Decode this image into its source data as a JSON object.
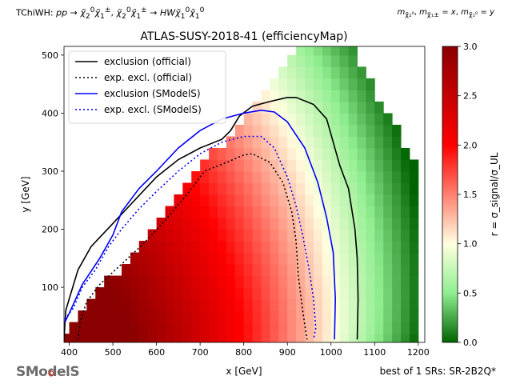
{
  "header": {
    "process_html": "TChiWH: <i>pp</i> → <i>χ̃</i><sub>2</sub><sup>0</sup><i>χ̃</i><sub>1</sub><sup>±</sup>, <i>χ̃</i><sub>2</sub><sup>0</sup><i>χ̃</i><sub>1</sub><sup>±</sup> → <i>HWχ̃</i><sub>1</sub><sup>0</sup><i>χ̃</i><sub>1</sub><sup>0</sup>",
    "mass_assignment_html": "<i>m</i><sub>χ̃₂⁰</sub>, <i>m</i><sub>χ̃₁±</sub> = <i>x</i>, <i>m</i><sub>χ̃₁⁰</sub> = <i>y</i>"
  },
  "footer": {
    "logo_text": "SModelS",
    "best_sr": "best of 1 SRs: SR-2B2Q*"
  },
  "chart_data": {
    "type": "heatmap",
    "title": "ATLAS-SUSY-2018-41 (efficiencyMap)",
    "xlabel": "x [GeV]",
    "ylabel": "y [GeV]",
    "xlim": [
      388,
      1215
    ],
    "ylim": [
      5,
      515
    ],
    "xticks": [
      400,
      500,
      600,
      700,
      800,
      900,
      1000,
      1100,
      1200
    ],
    "yticks": [
      100,
      200,
      300,
      400,
      500
    ],
    "grid": false,
    "colorbar": {
      "label": "r = σ_signal/σ_UL",
      "min": 0.0,
      "max": 3.0,
      "ticks": [
        "0.0",
        "0.5",
        "1.0",
        "1.5",
        "2.0",
        "2.5",
        "3.0"
      ],
      "colors": [
        "#006400",
        "#90ee90",
        "#ffffe0",
        "#ff0000",
        "#8b0000"
      ]
    },
    "legend": {
      "placement": "top-left",
      "entries": [
        {
          "label": "exclusion (official)",
          "color": "#000000",
          "style": "solid"
        },
        {
          "label": "exp. excl. (official)",
          "color": "#000000",
          "style": "dotted"
        },
        {
          "label": "exclusion (SModelS)",
          "color": "#0000ff",
          "style": "solid"
        },
        {
          "label": "exp. excl. (SModelS)",
          "color": "#0000ff",
          "style": "dotted"
        }
      ]
    },
    "series": [
      {
        "name": "exclusion (official)",
        "color": "#000000",
        "style": "solid",
        "points": [
          [
            388,
            10
          ],
          [
            392,
            60
          ],
          [
            400,
            80
          ],
          [
            420,
            130
          ],
          [
            450,
            170
          ],
          [
            500,
            210
          ],
          [
            550,
            250
          ],
          [
            600,
            290
          ],
          [
            650,
            320
          ],
          [
            700,
            340
          ],
          [
            750,
            355
          ],
          [
            770,
            370
          ],
          [
            790,
            395
          ],
          [
            820,
            412
          ],
          [
            860,
            420
          ],
          [
            900,
            427
          ],
          [
            920,
            427
          ],
          [
            960,
            415
          ],
          [
            990,
            390
          ],
          [
            1005,
            350
          ],
          [
            1020,
            310
          ],
          [
            1040,
            270
          ],
          [
            1055,
            200
          ],
          [
            1060,
            150
          ],
          [
            1062,
            80
          ],
          [
            1060,
            10
          ]
        ]
      },
      {
        "name": "exp. excl. (official)",
        "color": "#000000",
        "style": "dotted",
        "points": [
          [
            420,
            10
          ],
          [
            425,
            40
          ],
          [
            440,
            75
          ],
          [
            470,
            105
          ],
          [
            520,
            140
          ],
          [
            570,
            175
          ],
          [
            620,
            215
          ],
          [
            670,
            260
          ],
          [
            710,
            300
          ],
          [
            760,
            315
          ],
          [
            800,
            328
          ],
          [
            820,
            330
          ],
          [
            860,
            315
          ],
          [
            890,
            280
          ],
          [
            910,
            230
          ],
          [
            920,
            180
          ],
          [
            925,
            120
          ],
          [
            935,
            60
          ],
          [
            945,
            10
          ]
        ]
      },
      {
        "name": "exclusion (SModelS)",
        "color": "#0000ff",
        "style": "solid",
        "points": [
          [
            390,
            40
          ],
          [
            400,
            55
          ],
          [
            430,
            105
          ],
          [
            470,
            150
          ],
          [
            500,
            190
          ],
          [
            520,
            230
          ],
          [
            560,
            270
          ],
          [
            600,
            300
          ],
          [
            650,
            340
          ],
          [
            700,
            370
          ],
          [
            750,
            390
          ],
          [
            800,
            400
          ],
          [
            840,
            405
          ],
          [
            870,
            402
          ],
          [
            900,
            385
          ],
          [
            940,
            340
          ],
          [
            970,
            280
          ],
          [
            990,
            220
          ],
          [
            1005,
            160
          ],
          [
            1010,
            80
          ],
          [
            1008,
            10
          ]
        ]
      },
      {
        "name": "exp. excl. (SModelS)",
        "color": "#0000ff",
        "style": "dotted",
        "points": [
          [
            390,
            45
          ],
          [
            410,
            65
          ],
          [
            430,
            100
          ],
          [
            460,
            130
          ],
          [
            490,
            170
          ],
          [
            520,
            200
          ],
          [
            560,
            235
          ],
          [
            600,
            265
          ],
          [
            650,
            300
          ],
          [
            700,
            330
          ],
          [
            750,
            350
          ],
          [
            800,
            360
          ],
          [
            840,
            360
          ],
          [
            870,
            340
          ],
          [
            900,
            290
          ],
          [
            920,
            240
          ],
          [
            935,
            190
          ],
          [
            950,
            130
          ],
          [
            960,
            80
          ],
          [
            965,
            30
          ],
          [
            960,
            10
          ]
        ]
      }
    ]
  }
}
